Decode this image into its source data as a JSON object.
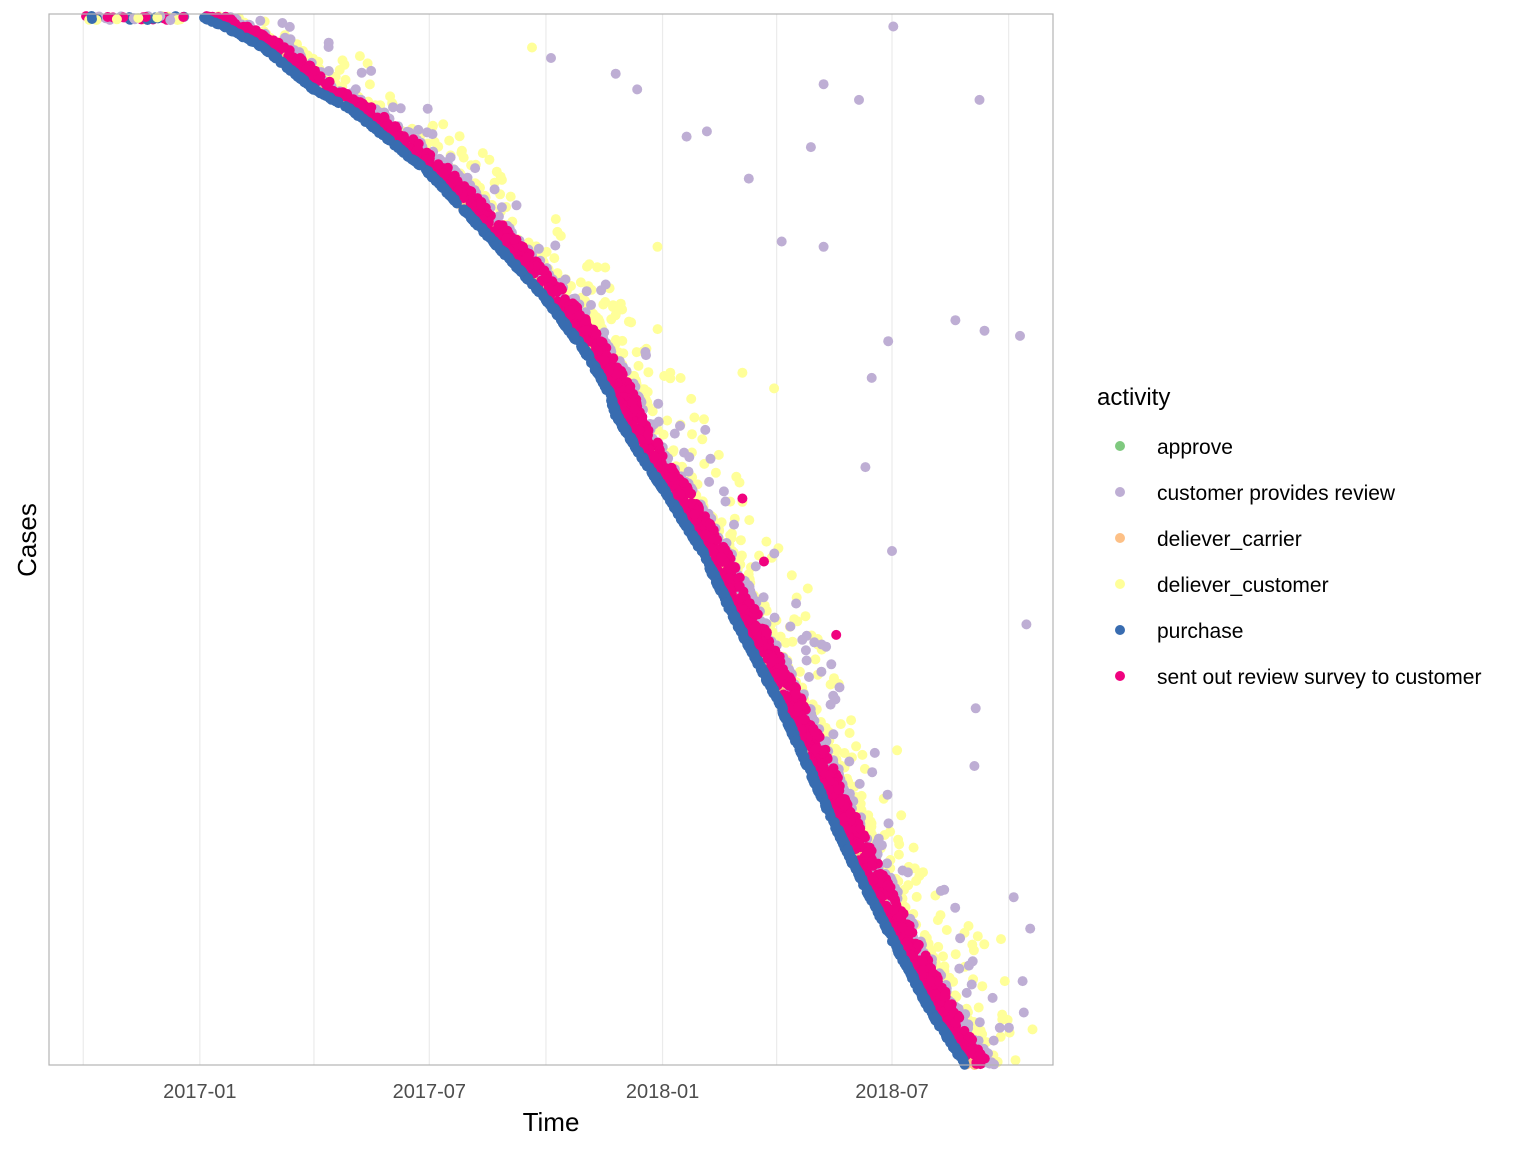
{
  "chart_data": {
    "type": "scatter",
    "title": "",
    "xlabel": "Time",
    "ylabel": "Cases",
    "xlim": [
      "2016-09-04",
      "2018-11-05"
    ],
    "grid": true,
    "x_ticks": [
      {
        "value": "2016-10-01",
        "label": ""
      },
      {
        "value": "2017-01-01",
        "label": "2017-01"
      },
      {
        "value": "2017-04-01",
        "label": ""
      },
      {
        "value": "2017-07-01",
        "label": "2017-07"
      },
      {
        "value": "2017-10-01",
        "label": ""
      },
      {
        "value": "2018-01-01",
        "label": "2018-01"
      },
      {
        "value": "2018-04-01",
        "label": ""
      },
      {
        "value": "2018-07-01",
        "label": "2018-07"
      },
      {
        "value": "2018-10-01",
        "label": ""
      }
    ],
    "legend": {
      "title": "activity",
      "position": "right",
      "entries": [
        {
          "label": "approve",
          "color": "#7fc97f"
        },
        {
          "label": "customer provides review",
          "color": "#beaed4"
        },
        {
          "label": "deliever_carrier",
          "color": "#fdc086"
        },
        {
          "label": "deliever_customer",
          "color": "#ffff99"
        },
        {
          "label": "purchase",
          "color": "#386cb0"
        },
        {
          "label": "sent out review survey to customer",
          "color": "#f0027f"
        }
      ]
    },
    "purchase_trend": [
      [
        "2016-10-01",
        0.0
      ],
      [
        "2016-12-31",
        0.0
      ],
      [
        "2017-01-20",
        0.01
      ],
      [
        "2017-02-20",
        0.03
      ],
      [
        "2017-04-01",
        0.07
      ],
      [
        "2017-05-01",
        0.09
      ],
      [
        "2017-06-01",
        0.12
      ],
      [
        "2017-07-01",
        0.15
      ],
      [
        "2017-08-01",
        0.19
      ],
      [
        "2017-09-01",
        0.23
      ],
      [
        "2017-10-01",
        0.27
      ],
      [
        "2017-11-01",
        0.32
      ],
      [
        "2017-11-20",
        0.36
      ],
      [
        "2017-11-25",
        0.38
      ],
      [
        "2017-12-10",
        0.41
      ],
      [
        "2018-01-01",
        0.45
      ],
      [
        "2018-02-01",
        0.51
      ],
      [
        "2018-03-01",
        0.58
      ],
      [
        "2018-04-01",
        0.65
      ],
      [
        "2018-05-01",
        0.73
      ],
      [
        "2018-06-01",
        0.81
      ],
      [
        "2018-07-01",
        0.88
      ],
      [
        "2018-08-01",
        0.95
      ],
      [
        "2018-08-28",
        1.0
      ]
    ],
    "note_y": "y is relative case rank (0 = first case, 1 = last case); the y axis has no tick labels",
    "outliers": [
      {
        "activity": "customer provides review",
        "x": "2018-07-02",
        "y": 0.01
      },
      {
        "activity": "customer provides review",
        "x": "2018-09-08",
        "y": 0.08
      },
      {
        "activity": "customer provides review",
        "x": "2018-06-05",
        "y": 0.08
      },
      {
        "activity": "customer provides review",
        "x": "2018-05-08",
        "y": 0.065
      },
      {
        "activity": "customer provides review",
        "x": "2018-04-28",
        "y": 0.125
      },
      {
        "activity": "customer provides review",
        "x": "2018-04-05",
        "y": 0.215
      },
      {
        "activity": "customer provides review",
        "x": "2018-03-10",
        "y": 0.155
      },
      {
        "activity": "customer provides review",
        "x": "2018-05-08",
        "y": 0.22
      },
      {
        "activity": "customer provides review",
        "x": "2018-08-20",
        "y": 0.29
      },
      {
        "activity": "customer provides review",
        "x": "2018-09-12",
        "y": 0.3
      },
      {
        "activity": "customer provides review",
        "x": "2018-10-10",
        "y": 0.305
      },
      {
        "activity": "customer provides review",
        "x": "2018-06-28",
        "y": 0.31
      },
      {
        "activity": "customer provides review",
        "x": "2018-06-15",
        "y": 0.345
      },
      {
        "activity": "customer provides review",
        "x": "2018-06-10",
        "y": 0.43
      },
      {
        "activity": "customer provides review",
        "x": "2018-07-01",
        "y": 0.51
      },
      {
        "activity": "customer provides review",
        "x": "2018-10-15",
        "y": 0.58
      },
      {
        "activity": "customer provides review",
        "x": "2018-09-05",
        "y": 0.66
      },
      {
        "activity": "customer provides review",
        "x": "2018-09-04",
        "y": 0.715
      },
      {
        "activity": "customer provides review",
        "x": "2018-10-05",
        "y": 0.84
      },
      {
        "activity": "customer provides review",
        "x": "2018-10-18",
        "y": 0.87
      },
      {
        "activity": "customer provides review",
        "x": "2018-10-12",
        "y": 0.92
      },
      {
        "activity": "customer provides review",
        "x": "2018-10-13",
        "y": 0.95
      },
      {
        "activity": "customer provides review",
        "x": "2017-10-05",
        "y": 0.04
      },
      {
        "activity": "customer provides review",
        "x": "2017-11-25",
        "y": 0.055
      },
      {
        "activity": "customer provides review",
        "x": "2017-12-12",
        "y": 0.07
      },
      {
        "activity": "customer provides review",
        "x": "2018-01-20",
        "y": 0.115
      },
      {
        "activity": "customer provides review",
        "x": "2018-02-05",
        "y": 0.11
      },
      {
        "activity": "deliever_customer",
        "x": "2017-09-20",
        "y": 0.03
      },
      {
        "activity": "deliever_customer",
        "x": "2017-12-28",
        "y": 0.22
      },
      {
        "activity": "deliever_customer",
        "x": "2018-03-05",
        "y": 0.34
      },
      {
        "activity": "deliever_customer",
        "x": "2018-03-30",
        "y": 0.355
      },
      {
        "activity": "deliever_customer",
        "x": "2018-07-05",
        "y": 0.7
      },
      {
        "activity": "deliever_customer",
        "x": "2018-09-25",
        "y": 0.88
      },
      {
        "activity": "deliever_customer",
        "x": "2018-09-28",
        "y": 0.92
      },
      {
        "activity": "sent out review survey to customer",
        "x": "2018-05-18",
        "y": 0.59
      },
      {
        "activity": "sent out review survey to customer",
        "x": "2018-03-22",
        "y": 0.52
      },
      {
        "activity": "sent out review survey to customer",
        "x": "2018-03-05",
        "y": 0.46
      }
    ]
  }
}
